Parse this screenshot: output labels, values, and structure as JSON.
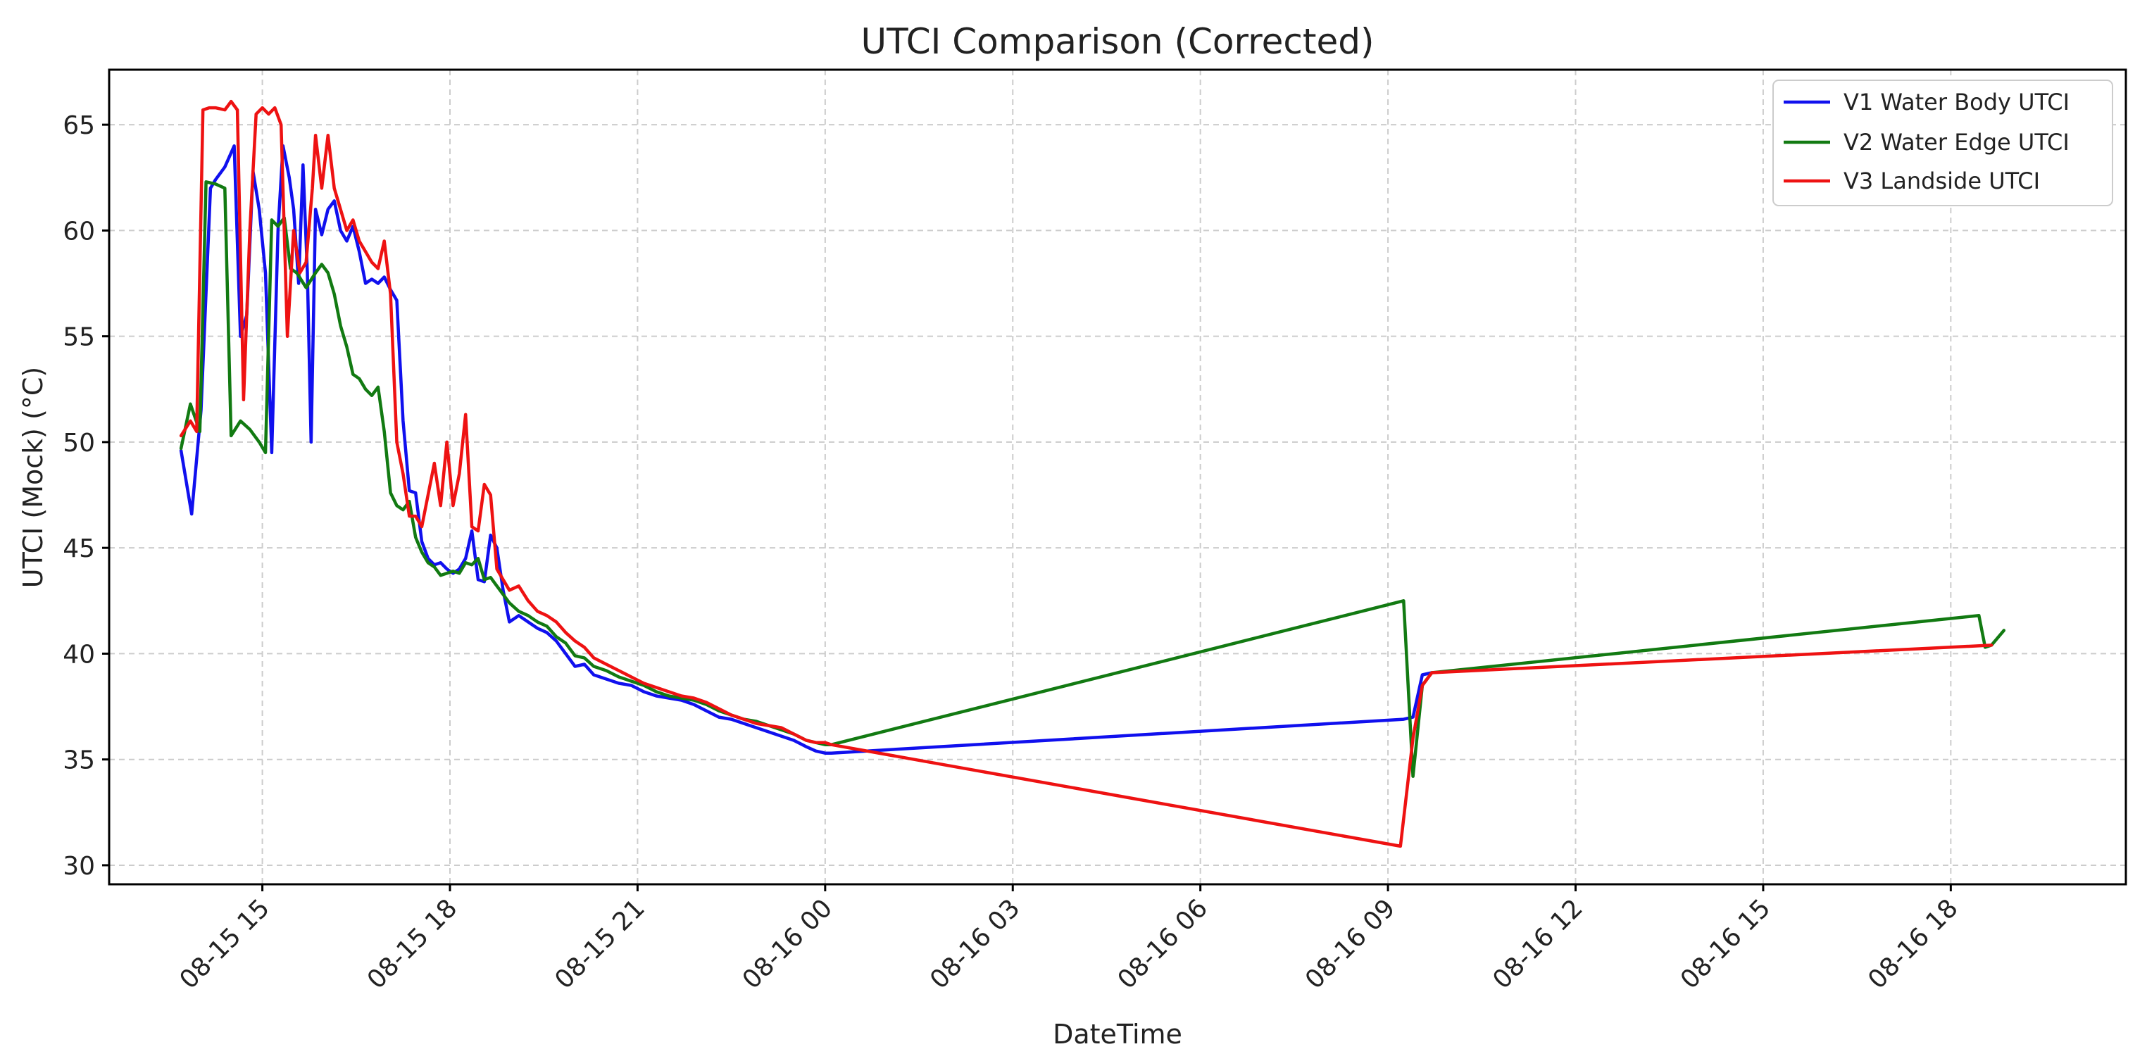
{
  "chart_data": {
    "type": "line",
    "title": "UTCI Comparison (Corrected)",
    "xlabel": "DateTime",
    "ylabel": "UTCI (Mock) (°C)",
    "x_unit": "hours since 08-15 15:00",
    "xlim": [
      -2.45,
      29.8
    ],
    "ylim": [
      29.1,
      67.6
    ],
    "grid": true,
    "legend_position": "top-right",
    "x_ticks": [
      {
        "value": 0,
        "label": "08-15 15"
      },
      {
        "value": 3,
        "label": "08-15 18"
      },
      {
        "value": 6,
        "label": "08-15 21"
      },
      {
        "value": 9,
        "label": "08-16 00"
      },
      {
        "value": 12,
        "label": "08-16 03"
      },
      {
        "value": 15,
        "label": "08-16 06"
      },
      {
        "value": 18,
        "label": "08-16 09"
      },
      {
        "value": 21,
        "label": "08-16 12"
      },
      {
        "value": 24,
        "label": "08-16 15"
      },
      {
        "value": 27,
        "label": "08-16 18"
      }
    ],
    "y_ticks": [
      {
        "value": 30,
        "label": "30"
      },
      {
        "value": 35,
        "label": "35"
      },
      {
        "value": 40,
        "label": "40"
      },
      {
        "value": 45,
        "label": "45"
      },
      {
        "value": 50,
        "label": "50"
      },
      {
        "value": 55,
        "label": "55"
      },
      {
        "value": 60,
        "label": "60"
      },
      {
        "value": 65,
        "label": "65"
      }
    ],
    "series": [
      {
        "name": "V1 Water Body UTCI",
        "color": "#1010ee",
        "points": [
          [
            -1.3,
            49.6
          ],
          [
            -1.13,
            46.6
          ],
          [
            -0.98,
            51.5
          ],
          [
            -0.83,
            62.0
          ],
          [
            -0.75,
            62.4
          ],
          [
            -0.6,
            63.0
          ],
          [
            -0.45,
            64.0
          ],
          [
            -0.35,
            55.0
          ],
          [
            -0.25,
            56.0
          ],
          [
            -0.15,
            62.8
          ],
          [
            -0.05,
            61.0
          ],
          [
            0.05,
            58.0
          ],
          [
            0.15,
            49.5
          ],
          [
            0.25,
            60.0
          ],
          [
            0.33,
            64.0
          ],
          [
            0.43,
            62.5
          ],
          [
            0.5,
            61.0
          ],
          [
            0.58,
            57.5
          ],
          [
            0.65,
            63.1
          ],
          [
            0.72,
            58.0
          ],
          [
            0.78,
            50.0
          ],
          [
            0.85,
            61.0
          ],
          [
            0.95,
            59.8
          ],
          [
            1.05,
            61.0
          ],
          [
            1.15,
            61.4
          ],
          [
            1.25,
            60.0
          ],
          [
            1.35,
            59.5
          ],
          [
            1.45,
            60.2
          ],
          [
            1.55,
            59.0
          ],
          [
            1.65,
            57.5
          ],
          [
            1.75,
            57.7
          ],
          [
            1.85,
            57.5
          ],
          [
            1.95,
            57.8
          ],
          [
            2.05,
            57.2
          ],
          [
            2.15,
            56.7
          ],
          [
            2.25,
            51.0
          ],
          [
            2.35,
            47.7
          ],
          [
            2.45,
            47.6
          ],
          [
            2.55,
            45.3
          ],
          [
            2.65,
            44.5
          ],
          [
            2.75,
            44.2
          ],
          [
            2.85,
            44.3
          ],
          [
            2.95,
            44.0
          ],
          [
            3.05,
            43.8
          ],
          [
            3.15,
            44.0
          ],
          [
            3.25,
            44.5
          ],
          [
            3.35,
            45.8
          ],
          [
            3.45,
            43.5
          ],
          [
            3.55,
            43.4
          ],
          [
            3.65,
            45.6
          ],
          [
            3.75,
            45.0
          ],
          [
            3.85,
            43.0
          ],
          [
            3.95,
            41.5
          ],
          [
            4.1,
            41.8
          ],
          [
            4.25,
            41.5
          ],
          [
            4.4,
            41.2
          ],
          [
            4.55,
            41.0
          ],
          [
            4.7,
            40.6
          ],
          [
            4.85,
            40.0
          ],
          [
            5.0,
            39.4
          ],
          [
            5.15,
            39.5
          ],
          [
            5.3,
            39.0
          ],
          [
            5.5,
            38.8
          ],
          [
            5.7,
            38.6
          ],
          [
            5.9,
            38.5
          ],
          [
            6.1,
            38.2
          ],
          [
            6.3,
            38.0
          ],
          [
            6.5,
            37.9
          ],
          [
            6.7,
            37.8
          ],
          [
            6.9,
            37.6
          ],
          [
            7.1,
            37.3
          ],
          [
            7.3,
            37.0
          ],
          [
            7.5,
            36.9
          ],
          [
            7.7,
            36.7
          ],
          [
            7.9,
            36.5
          ],
          [
            8.1,
            36.3
          ],
          [
            8.3,
            36.1
          ],
          [
            8.5,
            35.9
          ],
          [
            8.7,
            35.6
          ],
          [
            8.85,
            35.4
          ],
          [
            9.0,
            35.3
          ],
          [
            9.1,
            35.3
          ],
          [
            18.25,
            36.9
          ],
          [
            18.4,
            37.0
          ],
          [
            18.55,
            39.0
          ],
          [
            18.7,
            39.1
          ]
        ]
      },
      {
        "name": "V2 Water Edge UTCI",
        "color": "#127a12",
        "points": [
          [
            -1.3,
            49.7
          ],
          [
            -1.15,
            51.8
          ],
          [
            -1.0,
            50.5
          ],
          [
            -0.9,
            62.3
          ],
          [
            -0.75,
            62.2
          ],
          [
            -0.6,
            62.0
          ],
          [
            -0.5,
            50.3
          ],
          [
            -0.35,
            51.0
          ],
          [
            -0.2,
            50.6
          ],
          [
            -0.05,
            50.0
          ],
          [
            0.05,
            49.5
          ],
          [
            0.15,
            60.5
          ],
          [
            0.25,
            60.2
          ],
          [
            0.35,
            60.6
          ],
          [
            0.45,
            58.2
          ],
          [
            0.55,
            58.0
          ],
          [
            0.7,
            57.3
          ],
          [
            0.85,
            58.0
          ],
          [
            0.95,
            58.4
          ],
          [
            1.05,
            58.0
          ],
          [
            1.15,
            57.0
          ],
          [
            1.25,
            55.5
          ],
          [
            1.35,
            54.5
          ],
          [
            1.45,
            53.2
          ],
          [
            1.55,
            53.0
          ],
          [
            1.65,
            52.5
          ],
          [
            1.75,
            52.2
          ],
          [
            1.85,
            52.6
          ],
          [
            1.95,
            50.5
          ],
          [
            2.05,
            47.6
          ],
          [
            2.15,
            47.0
          ],
          [
            2.25,
            46.8
          ],
          [
            2.35,
            47.2
          ],
          [
            2.45,
            45.5
          ],
          [
            2.55,
            44.8
          ],
          [
            2.65,
            44.3
          ],
          [
            2.75,
            44.1
          ],
          [
            2.85,
            43.7
          ],
          [
            2.95,
            43.8
          ],
          [
            3.05,
            43.9
          ],
          [
            3.15,
            43.8
          ],
          [
            3.25,
            44.3
          ],
          [
            3.35,
            44.2
          ],
          [
            3.45,
            44.5
          ],
          [
            3.55,
            43.5
          ],
          [
            3.65,
            43.6
          ],
          [
            3.75,
            43.2
          ],
          [
            3.85,
            42.8
          ],
          [
            3.95,
            42.4
          ],
          [
            4.1,
            42.0
          ],
          [
            4.25,
            41.8
          ],
          [
            4.4,
            41.5
          ],
          [
            4.55,
            41.3
          ],
          [
            4.7,
            40.8
          ],
          [
            4.85,
            40.5
          ],
          [
            5.0,
            39.9
          ],
          [
            5.15,
            39.8
          ],
          [
            5.3,
            39.4
          ],
          [
            5.5,
            39.2
          ],
          [
            5.7,
            38.9
          ],
          [
            5.9,
            38.7
          ],
          [
            6.1,
            38.5
          ],
          [
            6.3,
            38.2
          ],
          [
            6.5,
            38.0
          ],
          [
            6.7,
            37.9
          ],
          [
            6.9,
            37.8
          ],
          [
            7.1,
            37.6
          ],
          [
            7.3,
            37.3
          ],
          [
            7.5,
            37.1
          ],
          [
            7.7,
            36.9
          ],
          [
            7.9,
            36.8
          ],
          [
            8.1,
            36.6
          ],
          [
            8.3,
            36.4
          ],
          [
            8.5,
            36.2
          ],
          [
            8.7,
            35.9
          ],
          [
            8.85,
            35.8
          ],
          [
            9.0,
            35.7
          ],
          [
            9.1,
            35.7
          ],
          [
            18.25,
            42.5
          ],
          [
            18.4,
            34.2
          ],
          [
            18.55,
            38.5
          ],
          [
            18.7,
            39.1
          ],
          [
            27.45,
            41.8
          ],
          [
            27.55,
            40.3
          ],
          [
            27.65,
            40.4
          ],
          [
            27.85,
            41.1
          ]
        ]
      },
      {
        "name": "V3 Landside UTCI",
        "color": "#ee1212",
        "points": [
          [
            -1.3,
            50.3
          ],
          [
            -1.15,
            51.0
          ],
          [
            -1.05,
            50.5
          ],
          [
            -0.95,
            65.7
          ],
          [
            -0.85,
            65.8
          ],
          [
            -0.75,
            65.8
          ],
          [
            -0.6,
            65.7
          ],
          [
            -0.5,
            66.1
          ],
          [
            -0.4,
            65.7
          ],
          [
            -0.3,
            52.0
          ],
          [
            -0.2,
            60.0
          ],
          [
            -0.1,
            65.5
          ],
          [
            0.0,
            65.8
          ],
          [
            0.1,
            65.5
          ],
          [
            0.2,
            65.8
          ],
          [
            0.3,
            65.0
          ],
          [
            0.4,
            55.0
          ],
          [
            0.5,
            60.0
          ],
          [
            0.6,
            58.0
          ],
          [
            0.7,
            58.5
          ],
          [
            0.8,
            62.0
          ],
          [
            0.85,
            64.5
          ],
          [
            0.95,
            62.0
          ],
          [
            1.05,
            64.5
          ],
          [
            1.15,
            62.0
          ],
          [
            1.25,
            61.0
          ],
          [
            1.35,
            60.0
          ],
          [
            1.45,
            60.5
          ],
          [
            1.55,
            59.5
          ],
          [
            1.65,
            59.0
          ],
          [
            1.75,
            58.5
          ],
          [
            1.85,
            58.2
          ],
          [
            1.95,
            59.5
          ],
          [
            2.05,
            57.0
          ],
          [
            2.15,
            50.0
          ],
          [
            2.25,
            48.5
          ],
          [
            2.35,
            46.5
          ],
          [
            2.45,
            46.5
          ],
          [
            2.55,
            46.0
          ],
          [
            2.65,
            47.5
          ],
          [
            2.75,
            49.0
          ],
          [
            2.85,
            47.0
          ],
          [
            2.95,
            50.0
          ],
          [
            3.05,
            47.0
          ],
          [
            3.15,
            48.5
          ],
          [
            3.25,
            51.3
          ],
          [
            3.35,
            46.0
          ],
          [
            3.45,
            45.8
          ],
          [
            3.55,
            48.0
          ],
          [
            3.65,
            47.5
          ],
          [
            3.75,
            44.0
          ],
          [
            3.85,
            43.5
          ],
          [
            3.95,
            43.0
          ],
          [
            4.1,
            43.2
          ],
          [
            4.25,
            42.5
          ],
          [
            4.4,
            42.0
          ],
          [
            4.55,
            41.8
          ],
          [
            4.7,
            41.5
          ],
          [
            4.85,
            41.0
          ],
          [
            5.0,
            40.6
          ],
          [
            5.15,
            40.3
          ],
          [
            5.3,
            39.8
          ],
          [
            5.5,
            39.5
          ],
          [
            5.7,
            39.2
          ],
          [
            5.9,
            38.9
          ],
          [
            6.1,
            38.6
          ],
          [
            6.3,
            38.4
          ],
          [
            6.5,
            38.2
          ],
          [
            6.7,
            38.0
          ],
          [
            6.9,
            37.9
          ],
          [
            7.1,
            37.7
          ],
          [
            7.3,
            37.4
          ],
          [
            7.5,
            37.1
          ],
          [
            7.7,
            36.9
          ],
          [
            7.9,
            36.7
          ],
          [
            8.1,
            36.6
          ],
          [
            8.3,
            36.5
          ],
          [
            8.5,
            36.2
          ],
          [
            8.7,
            35.9
          ],
          [
            8.85,
            35.8
          ],
          [
            9.0,
            35.8
          ],
          [
            9.1,
            35.7
          ],
          [
            18.2,
            30.9
          ],
          [
            18.4,
            36.0
          ],
          [
            18.55,
            38.5
          ],
          [
            18.7,
            39.1
          ],
          [
            27.65,
            40.4
          ]
        ]
      }
    ]
  }
}
